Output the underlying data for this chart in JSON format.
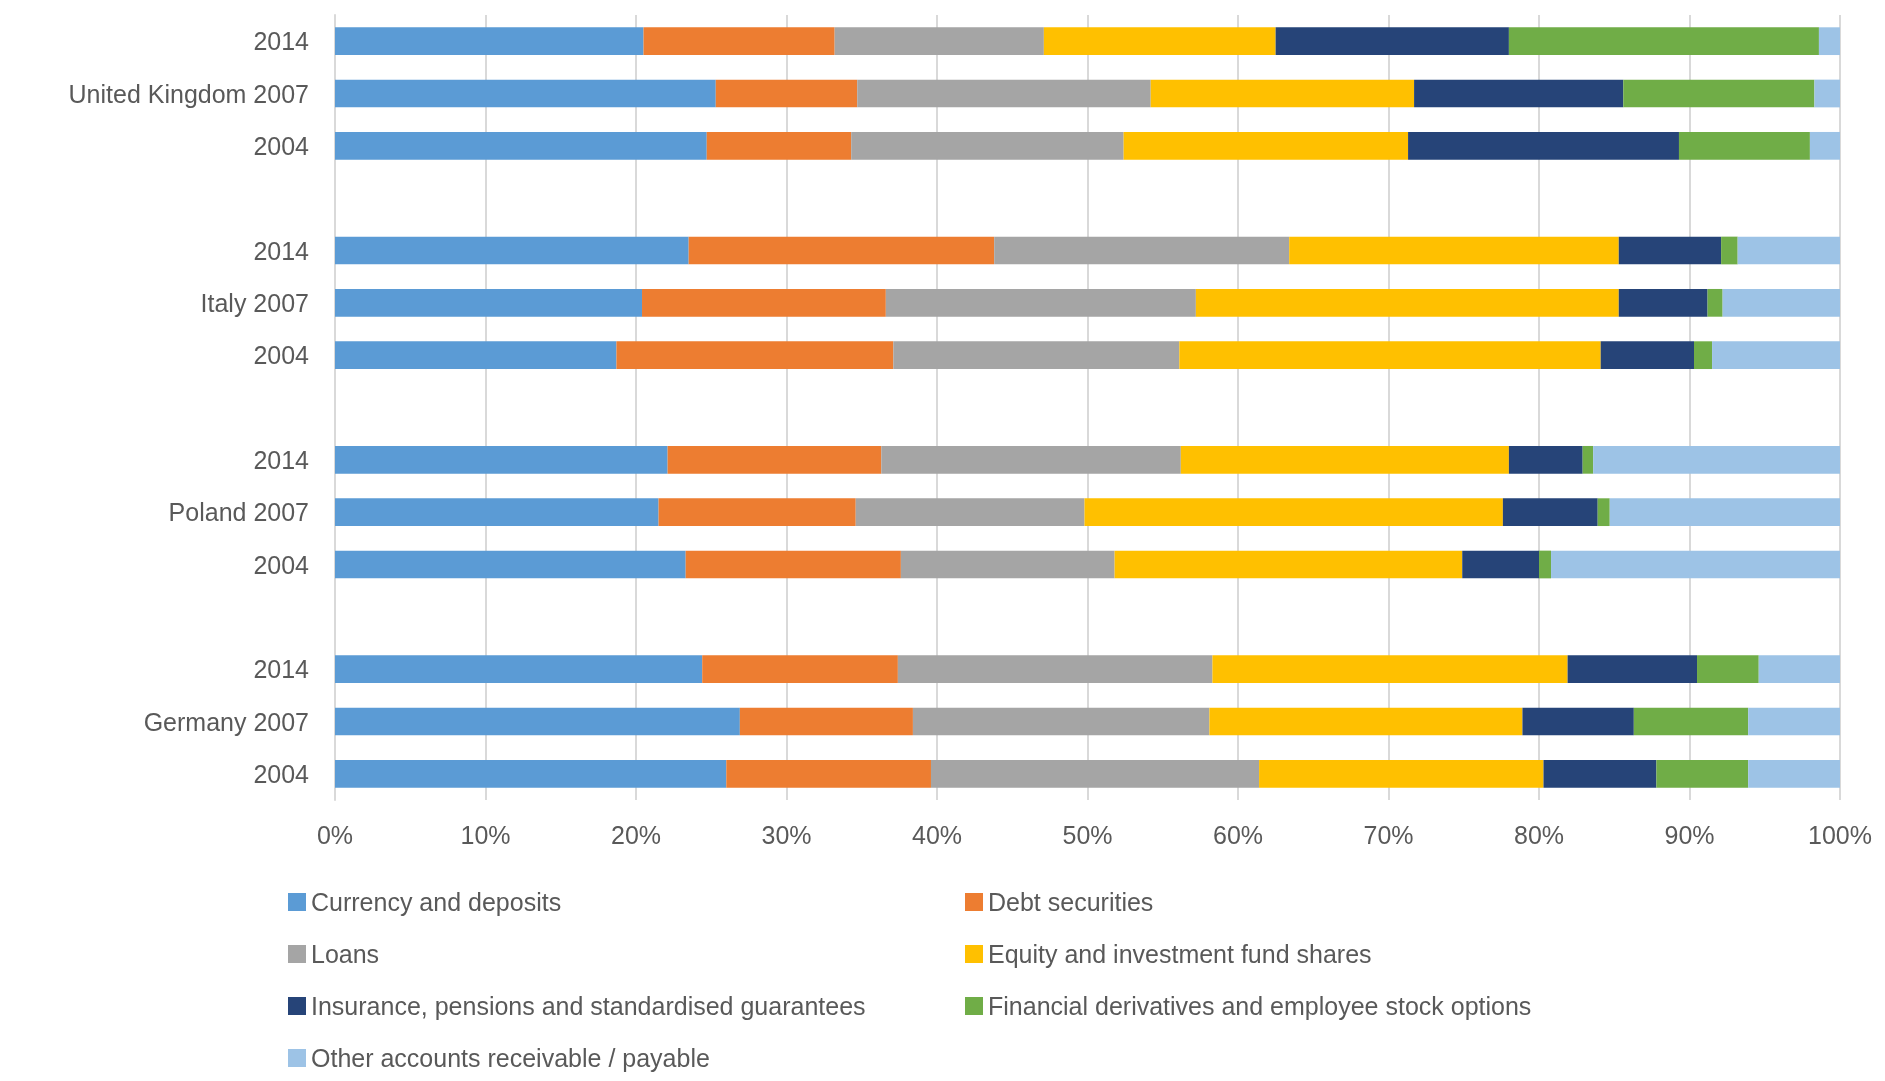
{
  "chart_data": {
    "type": "bar",
    "orientation": "horizontal",
    "stacked": true,
    "categories": [
      "2014",
      "United Kingdom 2007",
      "2004",
      null,
      "2014",
      "Italy 2007",
      "2004",
      null,
      "2014",
      "Poland 2007",
      "2004",
      null,
      "2014",
      "Germany 2007",
      "2004"
    ],
    "series": [
      {
        "name": "Currency and deposits",
        "color": "#5b9bd5",
        "values": [
          20.5,
          25.3,
          24.7,
          null,
          23.5,
          20.4,
          18.7,
          null,
          22.1,
          21.5,
          23.3,
          null,
          24.4,
          26.9,
          26.0
        ]
      },
      {
        "name": "Debt securities",
        "color": "#ed7d31",
        "values": [
          12.7,
          9.4,
          9.6,
          null,
          20.3,
          16.2,
          18.4,
          null,
          14.2,
          13.1,
          14.3,
          null,
          13.0,
          11.5,
          13.6
        ]
      },
      {
        "name": "Loans",
        "color": "#a5a5a5",
        "values": [
          13.9,
          19.5,
          18.1,
          null,
          19.6,
          20.6,
          19.0,
          null,
          19.9,
          15.2,
          14.2,
          null,
          20.9,
          19.7,
          21.8
        ]
      },
      {
        "name": "Equity and investment fund shares",
        "color": "#ffc000",
        "values": [
          15.4,
          17.5,
          18.9,
          null,
          21.9,
          28.1,
          28.0,
          null,
          21.8,
          27.8,
          23.1,
          null,
          23.6,
          20.8,
          18.9
        ]
      },
      {
        "name": "Insurance, pensions and standardised guarantees",
        "color": "#264478",
        "values": [
          15.5,
          13.9,
          18.0,
          null,
          6.8,
          5.9,
          6.2,
          null,
          4.9,
          6.3,
          5.1,
          null,
          8.6,
          7.4,
          7.5
        ]
      },
      {
        "name": "Financial derivatives and employee stock options",
        "color": "#70ad47",
        "values": [
          20.6,
          12.7,
          8.7,
          null,
          1.1,
          1.0,
          1.2,
          null,
          0.7,
          0.8,
          0.8,
          null,
          4.1,
          7.6,
          6.1
        ]
      },
      {
        "name": "Other accounts receivable / payable",
        "color": "#9dc3e6",
        "values": [
          1.4,
          1.7,
          2.0,
          null,
          6.8,
          7.8,
          8.5,
          null,
          16.4,
          15.3,
          19.2,
          null,
          5.4,
          6.1,
          6.1
        ]
      }
    ],
    "xlim": [
      0,
      100
    ],
    "xticks": [
      {
        "value": 0,
        "label": "0%"
      },
      {
        "value": 10,
        "label": "10%"
      },
      {
        "value": 20,
        "label": "20%"
      },
      {
        "value": 30,
        "label": "30%"
      },
      {
        "value": 40,
        "label": "40%"
      },
      {
        "value": 50,
        "label": "50%"
      },
      {
        "value": 60,
        "label": "60%"
      },
      {
        "value": 70,
        "label": "70%"
      },
      {
        "value": 80,
        "label": "80%"
      },
      {
        "value": 90,
        "label": "90%"
      },
      {
        "value": 100,
        "label": "100%"
      }
    ],
    "grid": "x",
    "legend": "bottom"
  }
}
